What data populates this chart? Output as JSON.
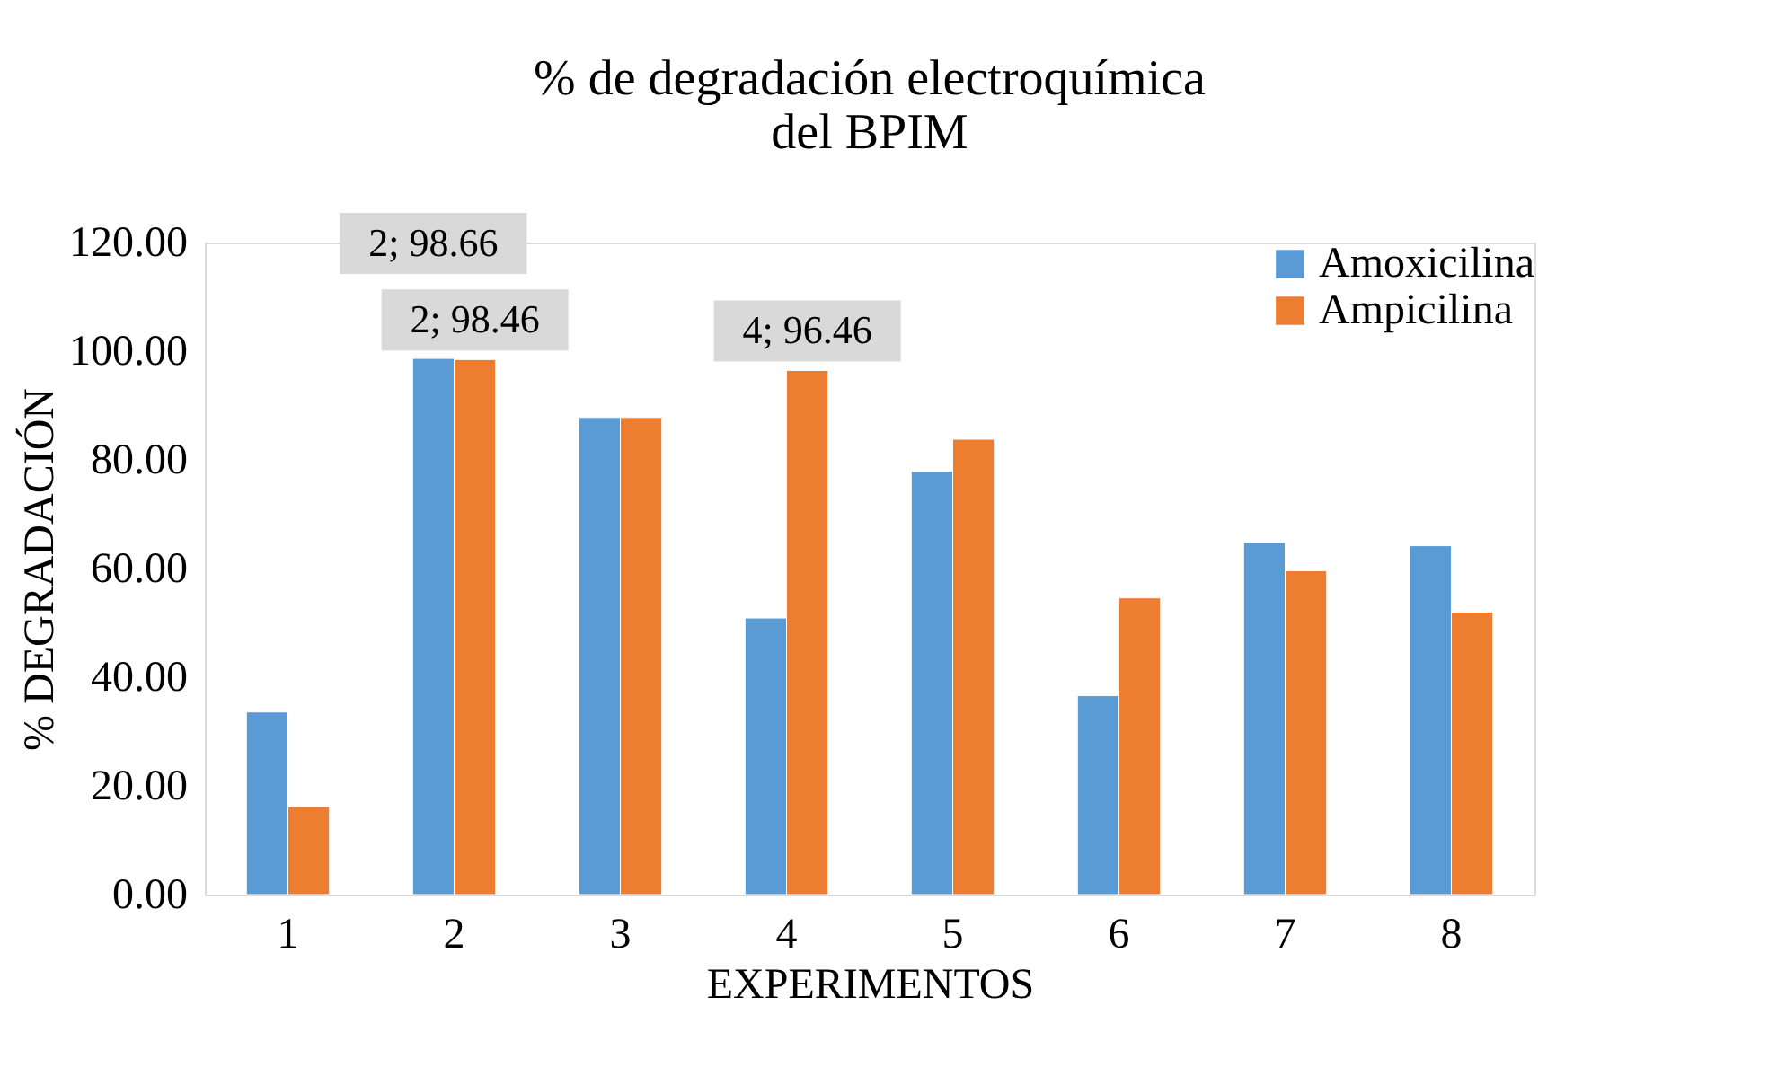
{
  "chart_data": {
    "type": "bar",
    "title": [
      "% de degradación electroquímica",
      "del BPIM"
    ],
    "xlabel": "EXPERIMENTOS",
    "ylabel": "% DEGRADACIÓN",
    "categories": [
      "1",
      "2",
      "3",
      "4",
      "5",
      "6",
      "7",
      "8"
    ],
    "series": [
      {
        "name": "Amoxicilina",
        "color": "#5b9bd5",
        "values": [
          33.6,
          98.66,
          87.8,
          50.9,
          77.9,
          36.6,
          64.8,
          64.2
        ],
        "value_labels": [
          null,
          "2; 98.66",
          null,
          null,
          null,
          null,
          null,
          null
        ]
      },
      {
        "name": "Ampicilina",
        "color": "#ed7d31",
        "values": [
          16.2,
          98.46,
          87.8,
          96.46,
          83.8,
          54.6,
          59.6,
          52.0
        ],
        "value_labels": [
          null,
          "2; 98.46",
          null,
          "4; 96.46",
          null,
          null,
          null,
          null
        ]
      }
    ],
    "ylim": [
      0,
      120
    ],
    "yticks": [
      {
        "value": 0,
        "label": "0.00"
      },
      {
        "value": 20,
        "label": "20.00"
      },
      {
        "value": 40,
        "label": "40.00"
      },
      {
        "value": 60,
        "label": "60.00"
      },
      {
        "value": 80,
        "label": "80.00"
      },
      {
        "value": 100,
        "label": "100.00"
      },
      {
        "value": 120,
        "label": "120.00"
      }
    ],
    "grid": false,
    "legend": "top right"
  }
}
